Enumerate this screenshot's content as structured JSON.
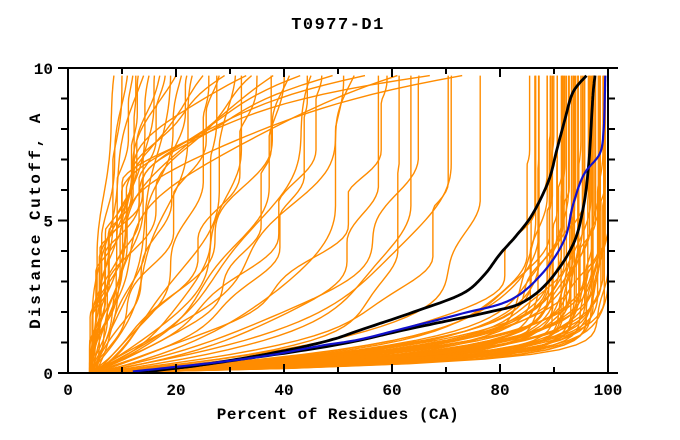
{
  "chart_data": {
    "type": "line",
    "title": "T0977-D1",
    "xlabel": "Percent of Residues (CA)",
    "ylabel": "Distance Cutoff, A",
    "xlim": [
      0,
      100
    ],
    "ylim": [
      0,
      10
    ],
    "x_tick_labels": [
      "0",
      "20",
      "40",
      "60",
      "80",
      "100"
    ],
    "x_major_ticks": [
      0,
      20,
      40,
      60,
      80,
      100
    ],
    "x_minor_step": 10,
    "y_tick_labels": [
      "0",
      "5",
      "10"
    ],
    "y_major_ticks": [
      0,
      5,
      10
    ],
    "y_minor_step": 1,
    "grid": false,
    "legend": "none",
    "colors": {
      "prediction": "#ff8c00",
      "highlight_black": "#000000",
      "highlight_blue": "#1111cc",
      "axis": "#000000",
      "background": "#ffffff"
    },
    "y_data_max": 9.75,
    "x_origin_percent": 4,
    "prediction_curves": [
      [
        4,
        8.5,
        0,
        0.3
      ],
      [
        4,
        10,
        0.1,
        0.4
      ],
      [
        4.5,
        11,
        -0.1,
        0.3
      ],
      [
        4,
        12,
        0.05,
        0.5
      ],
      [
        5,
        13,
        0.15,
        0.4
      ],
      [
        4,
        14,
        -0.15,
        0.5
      ],
      [
        4.5,
        15,
        0.1,
        0.6
      ],
      [
        4,
        16,
        0.2,
        0.5
      ],
      [
        5,
        17,
        -0.1,
        0.6
      ],
      [
        4,
        18,
        0.05,
        0.7
      ],
      [
        4.5,
        19,
        0.15,
        0.5
      ],
      [
        4,
        20,
        -0.2,
        0.8
      ],
      [
        5,
        21,
        0.1,
        0.6
      ],
      [
        4,
        22,
        0.2,
        0.7
      ],
      [
        4.5,
        12.5,
        0.3,
        0.3
      ],
      [
        4,
        23,
        0.2,
        0.8
      ],
      [
        4,
        25,
        -0.2,
        1.0
      ],
      [
        5,
        26,
        0.3,
        0.8
      ],
      [
        4,
        28,
        0.1,
        1.0
      ],
      [
        4,
        29,
        -0.3,
        0.9
      ],
      [
        5,
        31,
        0.25,
        1.0
      ],
      [
        4,
        32,
        0.4,
        0.8
      ],
      [
        4,
        34,
        -0.15,
        1.2
      ],
      [
        5,
        35,
        0.2,
        1.0
      ],
      [
        4,
        37,
        0.5,
        0.9
      ],
      [
        4,
        38,
        -0.25,
        1.1
      ],
      [
        5,
        40,
        0.3,
        1.0
      ],
      [
        4,
        41,
        0.15,
        1.2
      ],
      [
        4,
        43,
        -0.35,
        1.0
      ],
      [
        5,
        44,
        0.45,
        0.9
      ],
      [
        4,
        45,
        0.25,
        1.1
      ],
      [
        4,
        27,
        0.6,
        0.7
      ],
      [
        5,
        33,
        -0.45,
        1.0
      ],
      [
        4,
        47,
        0.3,
        1.2
      ],
      [
        4,
        49,
        -0.4,
        1.1
      ],
      [
        5,
        51,
        0.5,
        1.0
      ],
      [
        4,
        53,
        0.2,
        1.3
      ],
      [
        4,
        55,
        -0.5,
        1.2
      ],
      [
        5,
        57,
        0.6,
        1.0
      ],
      [
        4,
        59,
        0.35,
        1.2
      ],
      [
        4,
        61,
        -0.3,
        1.3
      ],
      [
        5,
        63,
        0.7,
        1.0
      ],
      [
        4,
        65,
        0.45,
        1.2
      ],
      [
        4,
        67,
        -0.6,
        1.3
      ],
      [
        5,
        69,
        0.8,
        1.1
      ],
      [
        4,
        71,
        0.5,
        1.2
      ],
      [
        4,
        73,
        -0.45,
        1.3
      ],
      [
        5,
        75,
        0.9,
        1.0
      ],
      [
        4,
        60,
        1.2,
        0.9
      ],
      [
        4,
        85,
        0.9,
        1.2
      ],
      [
        5,
        86,
        1.1,
        1.0
      ],
      [
        4,
        87,
        1.3,
        1.1
      ],
      [
        5,
        88,
        1.0,
        1.2
      ],
      [
        4,
        88,
        1.6,
        1.0
      ],
      [
        5,
        89,
        1.2,
        1.1
      ],
      [
        4,
        89,
        1.9,
        0.9
      ],
      [
        5,
        90,
        1.1,
        1.2
      ],
      [
        4,
        90,
        1.5,
        1.0
      ],
      [
        5,
        90,
        2.1,
        0.9
      ],
      [
        4,
        91,
        1.3,
        1.1
      ],
      [
        5,
        91,
        1.8,
        1.0
      ],
      [
        4,
        91,
        2.4,
        0.8
      ],
      [
        5,
        92,
        1.2,
        1.1
      ],
      [
        4,
        92,
        1.7,
        1.0
      ],
      [
        5,
        92,
        2.2,
        0.9
      ],
      [
        4,
        93,
        1.4,
        1.0
      ],
      [
        5,
        93,
        1.9,
        0.9
      ],
      [
        4,
        93,
        2.6,
        0.8
      ],
      [
        5,
        94,
        1.3,
        1.0
      ],
      [
        4,
        94,
        1.8,
        0.9
      ],
      [
        5,
        94,
        2.3,
        0.8
      ],
      [
        4,
        94,
        3.0,
        0.7
      ],
      [
        5,
        95,
        1.5,
        1.0
      ],
      [
        4,
        95,
        2.0,
        0.9
      ],
      [
        5,
        95,
        2.7,
        0.8
      ],
      [
        4,
        95,
        1.2,
        1.1
      ],
      [
        5,
        96,
        1.7,
        0.9
      ],
      [
        4,
        96,
        2.2,
        0.8
      ],
      [
        5,
        96,
        2.9,
        0.7
      ],
      [
        4,
        96,
        1.4,
        1.0
      ],
      [
        5,
        97,
        1.9,
        0.9
      ],
      [
        4,
        97,
        2.5,
        0.8
      ],
      [
        5,
        97,
        3.1,
        0.7
      ],
      [
        4,
        97,
        1.6,
        0.9
      ],
      [
        5,
        97,
        1.3,
        1.0
      ],
      [
        4,
        98,
        2.1,
        0.8
      ],
      [
        5,
        98,
        2.8,
        0.7
      ],
      [
        4,
        98,
        1.8,
        0.9
      ],
      [
        5,
        98,
        1.5,
        0.9
      ],
      [
        4,
        98,
        2.4,
        0.7
      ],
      [
        5,
        99,
        2.0,
        0.8
      ],
      [
        4,
        99,
        2.6,
        0.7
      ],
      [
        5,
        99,
        1.7,
        0.8
      ],
      [
        4,
        99,
        3.2,
        0.6
      ],
      [
        5,
        99,
        2.2,
        0.7
      ],
      [
        4,
        86,
        1.4,
        1.1
      ],
      [
        5,
        87,
        1.7,
        1.0
      ],
      [
        4,
        84,
        1.2,
        1.1
      ],
      [
        5,
        89,
        2.3,
        0.9
      ],
      [
        4,
        90,
        2.8,
        0.8
      ],
      [
        5,
        91,
        3.0,
        0.7
      ],
      [
        4,
        92,
        2.9,
        0.7
      ],
      [
        5,
        93,
        3.2,
        0.6
      ],
      [
        4,
        96,
        3.3,
        0.6
      ],
      [
        5,
        88,
        2.6,
        0.8
      ],
      [
        4,
        85,
        2.0,
        0.9
      ],
      [
        5,
        86,
        2.4,
        0.8
      ]
    ],
    "highlight_curves": [
      {
        "name": "black-model-1",
        "color": "#000000",
        "width": 2.8,
        "points_y_x": [
          [
            0.05,
            15
          ],
          [
            0.25,
            24
          ],
          [
            0.5,
            33
          ],
          [
            0.8,
            42
          ],
          [
            1.1,
            49
          ],
          [
            1.4,
            54
          ],
          [
            2.0,
            64
          ],
          [
            2.6,
            73
          ],
          [
            3.2,
            77
          ],
          [
            3.9,
            80
          ],
          [
            4.5,
            83
          ],
          [
            5.2,
            86
          ],
          [
            6.3,
            89
          ],
          [
            7.3,
            90.5
          ],
          [
            8.3,
            92
          ],
          [
            9.2,
            93.5
          ],
          [
            9.75,
            96
          ]
        ]
      },
      {
        "name": "black-model-2",
        "color": "#000000",
        "width": 2.8,
        "points_y_x": [
          [
            0.05,
            13
          ],
          [
            0.2,
            22
          ],
          [
            0.45,
            32
          ],
          [
            0.7,
            42
          ],
          [
            1.0,
            52
          ],
          [
            1.4,
            62
          ],
          [
            1.7,
            70
          ],
          [
            2.0,
            78
          ],
          [
            2.3,
            84
          ],
          [
            3.0,
            89
          ],
          [
            4.2,
            93.5
          ],
          [
            5.5,
            95.5
          ],
          [
            7.0,
            96.5
          ],
          [
            8.5,
            97
          ],
          [
            9.3,
            97.3
          ],
          [
            9.75,
            97.6
          ]
        ]
      },
      {
        "name": "blue-model",
        "color": "#1111cc",
        "width": 2.2,
        "points_y_x": [
          [
            0.05,
            12
          ],
          [
            0.2,
            20
          ],
          [
            0.4,
            30
          ],
          [
            0.6,
            38
          ],
          [
            0.9,
            47
          ],
          [
            1.1,
            54
          ],
          [
            1.5,
            63
          ],
          [
            1.95,
            73
          ],
          [
            2.4,
            82
          ],
          [
            3.3,
            88
          ],
          [
            4.4,
            92
          ],
          [
            5.5,
            93.5
          ],
          [
            6.5,
            95.5
          ],
          [
            7.2,
            98.5
          ],
          [
            8.0,
            99.2
          ],
          [
            9.0,
            99.4
          ],
          [
            9.75,
            99.5
          ]
        ]
      }
    ]
  }
}
